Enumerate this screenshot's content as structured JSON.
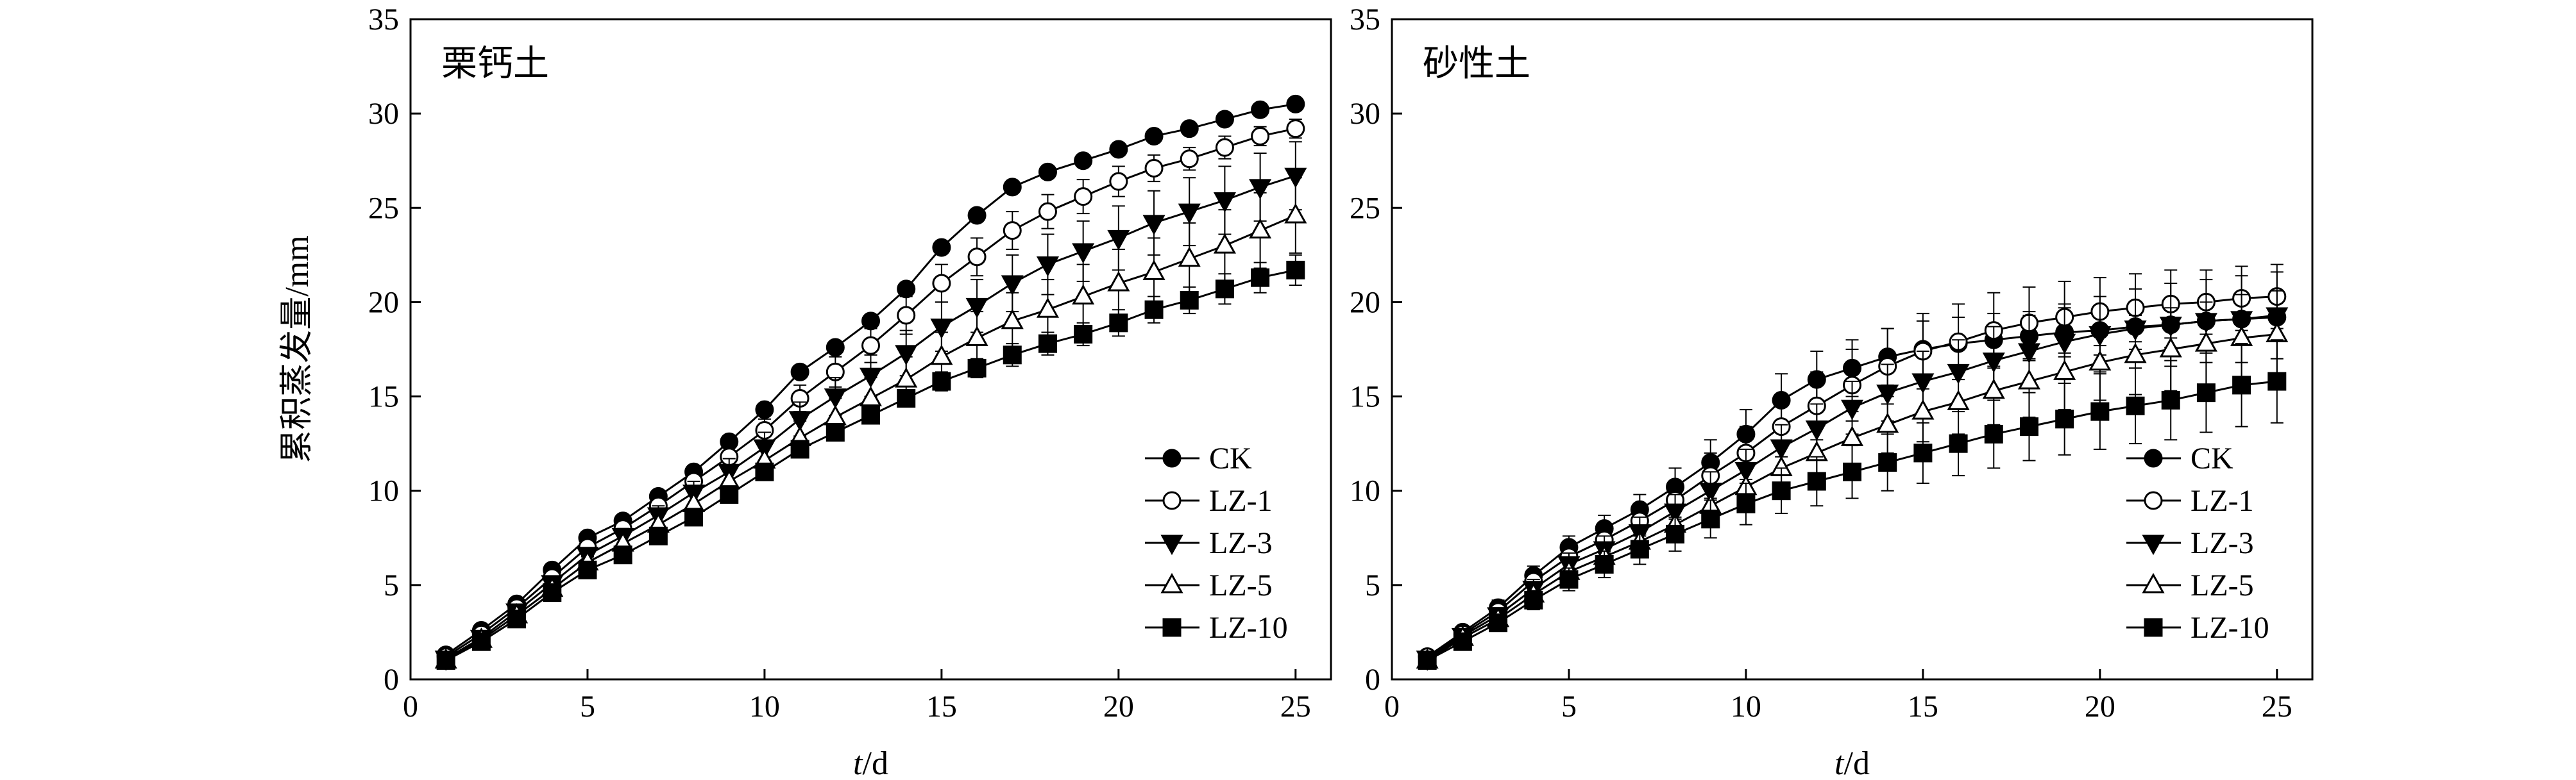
{
  "chart_data": [
    {
      "type": "line",
      "title": "栗钙土",
      "xlabel": "t/d",
      "ylabel": "累积蒸发量/mm",
      "xlim": [
        0,
        26
      ],
      "ylim": [
        0,
        35
      ],
      "x_ticks": [
        0,
        5,
        10,
        15,
        20,
        25
      ],
      "y_ticks": [
        0,
        5,
        10,
        15,
        20,
        25,
        30,
        35
      ],
      "legend_position": "bottom-right",
      "x": [
        1,
        2,
        3,
        4,
        5,
        6,
        7,
        8,
        9,
        10,
        11,
        12,
        13,
        14,
        15,
        16,
        17,
        18,
        19,
        20,
        21,
        22,
        23,
        24,
        25
      ],
      "series": [
        {
          "name": "CK",
          "marker": "filled-circle",
          "values": [
            1.3,
            2.6,
            4.0,
            5.8,
            7.5,
            8.4,
            9.7,
            11.0,
            12.6,
            14.3,
            16.3,
            17.6,
            19.0,
            20.7,
            22.9,
            24.6,
            26.1,
            26.9,
            27.5,
            28.1,
            28.8,
            29.2,
            29.7,
            30.2,
            30.5
          ],
          "errors": [
            0.1,
            0.15,
            0.2,
            0.25,
            0.3,
            0.3,
            0.3,
            0.3,
            0.3,
            0.3,
            0.3,
            0.3,
            0.3,
            0.3,
            0.3,
            0.3,
            0.3,
            0.3,
            0.3,
            0.3,
            0.3,
            0.3,
            0.3,
            0.3,
            0.3
          ]
        },
        {
          "name": "LZ-1",
          "marker": "open-circle",
          "values": [
            1.2,
            2.4,
            3.8,
            5.4,
            7.0,
            8.0,
            9.2,
            10.5,
            11.8,
            13.2,
            14.9,
            16.3,
            17.7,
            19.3,
            21.0,
            22.4,
            23.8,
            24.8,
            25.6,
            26.4,
            27.1,
            27.6,
            28.2,
            28.8,
            29.2
          ],
          "errors": [
            0.1,
            0.15,
            0.2,
            0.25,
            0.3,
            0.4,
            0.4,
            0.5,
            0.5,
            0.6,
            0.7,
            0.8,
            0.9,
            1.0,
            1.0,
            1.0,
            1.0,
            0.9,
            0.9,
            0.8,
            0.7,
            0.6,
            0.6,
            0.5,
            0.5
          ]
        },
        {
          "name": "LZ-3",
          "marker": "filled-triangle-down",
          "values": [
            1.1,
            2.2,
            3.6,
            5.1,
            6.6,
            7.6,
            8.7,
            9.9,
            11.0,
            12.3,
            13.8,
            15.0,
            16.1,
            17.3,
            18.7,
            19.8,
            21.0,
            22.0,
            22.7,
            23.4,
            24.2,
            24.8,
            25.4,
            26.1,
            26.7
          ],
          "errors": [
            0.1,
            0.15,
            0.2,
            0.25,
            0.3,
            0.4,
            0.5,
            0.6,
            0.7,
            0.8,
            0.9,
            1.0,
            1.1,
            1.2,
            1.3,
            1.4,
            1.5,
            1.6,
            1.6,
            1.7,
            1.7,
            1.8,
            1.8,
            1.8,
            1.8
          ]
        },
        {
          "name": "LZ-5",
          "marker": "open-triangle-up",
          "values": [
            1.0,
            2.1,
            3.4,
            4.8,
            6.2,
            7.2,
            8.2,
            9.3,
            10.5,
            11.6,
            12.8,
            13.9,
            14.9,
            15.9,
            17.1,
            18.1,
            19.0,
            19.6,
            20.3,
            21.0,
            21.6,
            22.3,
            23.0,
            23.8,
            24.6
          ],
          "errors": [
            0.1,
            0.15,
            0.2,
            0.25,
            0.3,
            0.4,
            0.5,
            0.6,
            0.7,
            0.8,
            0.9,
            1.0,
            1.1,
            1.2,
            1.3,
            1.4,
            1.5,
            1.6,
            1.7,
            1.8,
            1.8,
            1.9,
            1.9,
            2.0,
            2.0
          ]
        },
        {
          "name": "LZ-10",
          "marker": "filled-square",
          "values": [
            1.0,
            2.0,
            3.2,
            4.6,
            5.8,
            6.6,
            7.6,
            8.6,
            9.8,
            11.0,
            12.2,
            13.1,
            14.0,
            14.9,
            15.8,
            16.5,
            17.2,
            17.8,
            18.3,
            18.9,
            19.6,
            20.1,
            20.7,
            21.3,
            21.7
          ],
          "errors": [
            0.1,
            0.15,
            0.2,
            0.25,
            0.3,
            0.3,
            0.3,
            0.3,
            0.3,
            0.3,
            0.4,
            0.4,
            0.4,
            0.4,
            0.5,
            0.5,
            0.6,
            0.6,
            0.6,
            0.7,
            0.7,
            0.7,
            0.8,
            0.8,
            0.8
          ]
        }
      ]
    },
    {
      "type": "line",
      "title": "砂性土",
      "xlabel": "t/d",
      "ylabel": "",
      "xlim": [
        0,
        26
      ],
      "ylim": [
        0,
        35
      ],
      "x_ticks": [
        0,
        5,
        10,
        15,
        20,
        25
      ],
      "y_ticks": [
        0,
        5,
        10,
        15,
        20,
        25,
        30,
        35
      ],
      "legend_position": "bottom-right",
      "x": [
        1,
        2,
        3,
        4,
        5,
        6,
        7,
        8,
        9,
        10,
        11,
        12,
        13,
        14,
        15,
        16,
        17,
        18,
        19,
        20,
        21,
        22,
        23,
        24,
        25
      ],
      "series": [
        {
          "name": "CK",
          "marker": "filled-circle",
          "values": [
            1.2,
            2.5,
            3.8,
            5.5,
            7.0,
            8.0,
            9.0,
            10.2,
            11.5,
            13.0,
            14.8,
            15.9,
            16.5,
            17.1,
            17.5,
            17.8,
            18.0,
            18.2,
            18.4,
            18.5,
            18.7,
            18.8,
            19.0,
            19.1,
            19.2
          ],
          "errors": [
            0.15,
            0.3,
            0.4,
            0.5,
            0.6,
            0.7,
            0.8,
            1.0,
            1.2,
            1.3,
            1.4,
            1.5,
            1.5,
            1.5,
            1.5,
            1.4,
            1.4,
            1.3,
            1.3,
            1.3,
            1.2,
            1.2,
            1.2,
            1.2,
            1.2
          ]
        },
        {
          "name": "LZ-1",
          "marker": "open-circle",
          "values": [
            1.2,
            2.4,
            3.6,
            5.2,
            6.5,
            7.4,
            8.4,
            9.5,
            10.8,
            12.0,
            13.4,
            14.5,
            15.6,
            16.6,
            17.4,
            17.9,
            18.5,
            18.9,
            19.2,
            19.5,
            19.7,
            19.9,
            20.0,
            20.2,
            20.3
          ],
          "errors": [
            0.15,
            0.3,
            0.4,
            0.5,
            0.6,
            0.7,
            0.8,
            1.0,
            1.2,
            1.4,
            1.6,
            1.8,
            1.9,
            2.0,
            2.0,
            2.0,
            2.0,
            1.9,
            1.9,
            1.8,
            1.8,
            1.8,
            1.7,
            1.7,
            1.7
          ]
        },
        {
          "name": "LZ-3",
          "marker": "filled-triangle-down",
          "values": [
            1.1,
            2.3,
            3.4,
            4.8,
            6.1,
            6.9,
            7.8,
            8.9,
            10.0,
            11.1,
            12.3,
            13.3,
            14.4,
            15.2,
            15.8,
            16.3,
            16.9,
            17.4,
            17.9,
            18.3,
            18.6,
            18.8,
            19.0,
            19.1,
            19.3
          ],
          "errors": [
            0.15,
            0.3,
            0.4,
            0.5,
            0.6,
            0.7,
            0.8,
            0.9,
            1.0,
            1.1,
            1.2,
            1.3,
            1.4,
            1.5,
            1.6,
            1.7,
            1.8,
            1.9,
            2.0,
            2.0,
            2.1,
            2.2,
            2.2,
            2.3,
            2.3
          ]
        },
        {
          "name": "LZ-5",
          "marker": "open-triangle-up",
          "values": [
            1.0,
            2.2,
            3.2,
            4.5,
            5.7,
            6.5,
            7.3,
            8.2,
            9.2,
            10.2,
            11.2,
            12.0,
            12.8,
            13.5,
            14.2,
            14.7,
            15.3,
            15.8,
            16.3,
            16.8,
            17.2,
            17.5,
            17.8,
            18.1,
            18.3
          ],
          "errors": [
            0.15,
            0.3,
            0.4,
            0.5,
            0.6,
            0.7,
            0.8,
            0.9,
            1.0,
            1.1,
            1.2,
            1.3,
            1.4,
            1.5,
            1.6,
            1.7,
            1.8,
            1.9,
            2.0,
            2.0,
            2.1,
            2.2,
            2.2,
            2.3,
            2.3
          ]
        },
        {
          "name": "LZ-10",
          "marker": "filled-square",
          "values": [
            1.0,
            2.0,
            3.0,
            4.2,
            5.3,
            6.1,
            6.9,
            7.7,
            8.5,
            9.3,
            10.0,
            10.5,
            11.0,
            11.5,
            12.0,
            12.5,
            13.0,
            13.4,
            13.8,
            14.2,
            14.5,
            14.8,
            15.2,
            15.6,
            15.8
          ],
          "errors": [
            0.15,
            0.3,
            0.4,
            0.5,
            0.6,
            0.7,
            0.8,
            0.9,
            1.0,
            1.1,
            1.2,
            1.3,
            1.4,
            1.5,
            1.6,
            1.7,
            1.8,
            1.8,
            1.9,
            2.0,
            2.0,
            2.1,
            2.1,
            2.2,
            2.2
          ]
        }
      ]
    }
  ]
}
